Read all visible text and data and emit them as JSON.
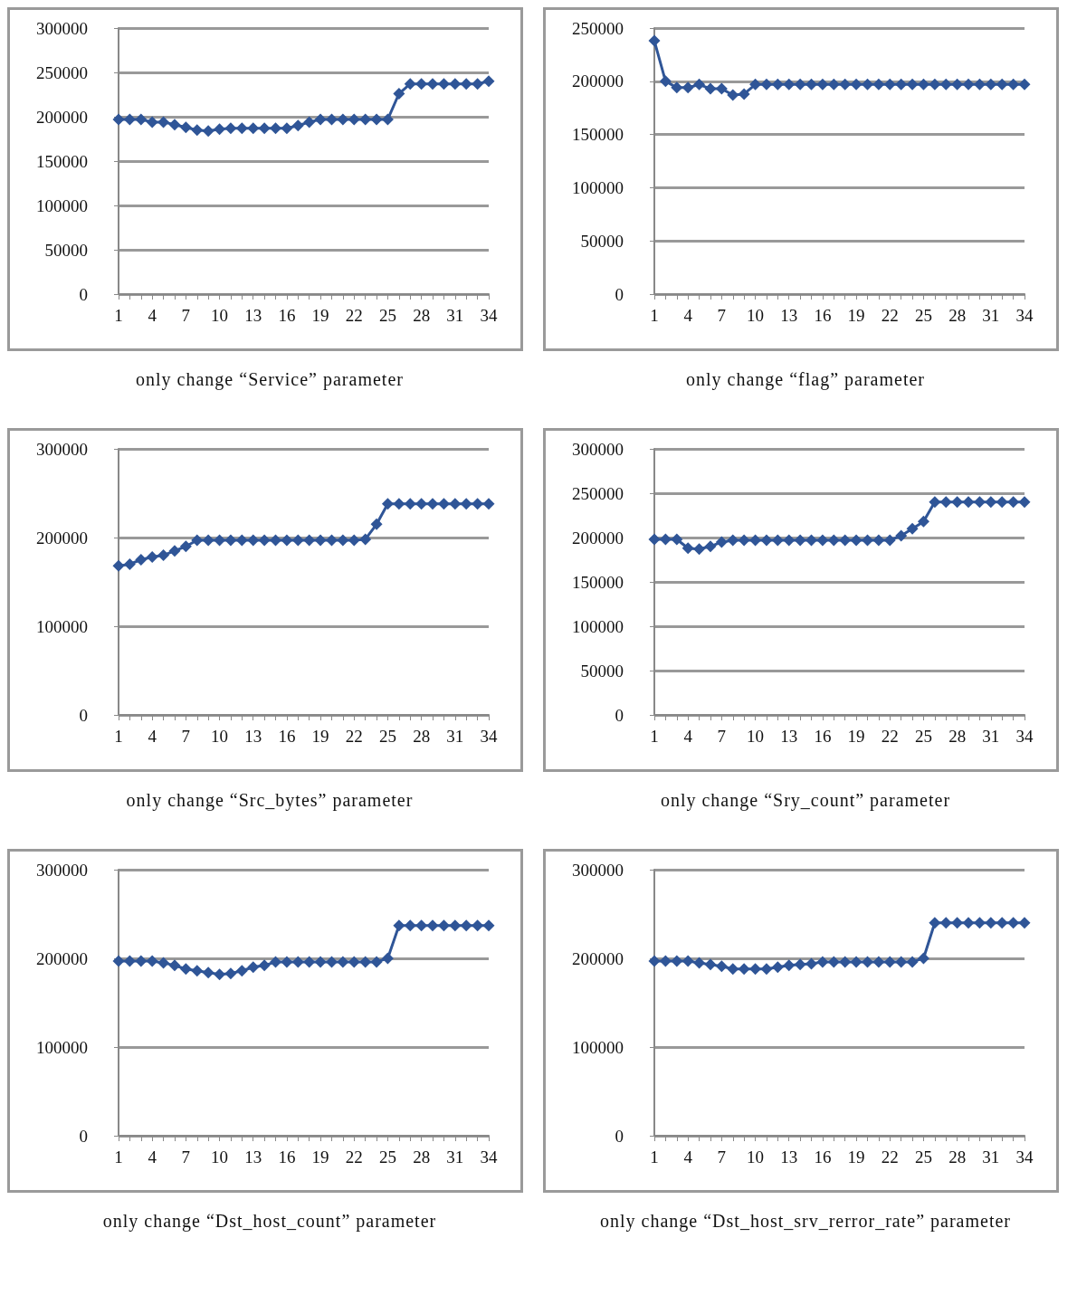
{
  "chart_data": [
    {
      "type": "line",
      "title": "only change “Service” parameter",
      "categories": [
        "1",
        null,
        null,
        "4",
        null,
        null,
        "7",
        null,
        null,
        "10",
        null,
        null,
        "13",
        null,
        null,
        "16",
        null,
        null,
        "19",
        null,
        null,
        "22",
        null,
        null,
        "25",
        null,
        null,
        "28",
        null,
        null,
        "31",
        null,
        null,
        "34"
      ],
      "series": [
        {
          "color": "#2f5597",
          "values": [
            197000,
            197000,
            197000,
            194000,
            194000,
            191000,
            188000,
            185000,
            184000,
            186000,
            187000,
            187000,
            187000,
            187000,
            187000,
            187000,
            190000,
            194000,
            197000,
            197000,
            197000,
            197000,
            197000,
            197000,
            197000,
            226000,
            237000,
            237000,
            237000,
            237000,
            237000,
            237000,
            237000,
            240000
          ]
        }
      ],
      "ylim": [
        0,
        300000
      ],
      "yticks": [
        0,
        50000,
        100000,
        150000,
        200000,
        250000,
        300000
      ],
      "grid": "y",
      "marker": "diamond",
      "line_style": "solid"
    },
    {
      "type": "line",
      "title": "only change “flag” parameter",
      "categories": [
        "1",
        null,
        null,
        "4",
        null,
        null,
        "7",
        null,
        null,
        "10",
        null,
        null,
        "13",
        null,
        null,
        "16",
        null,
        null,
        "19",
        null,
        null,
        "22",
        null,
        null,
        "25",
        null,
        null,
        "28",
        null,
        null,
        "31",
        null,
        null,
        "34"
      ],
      "series": [
        {
          "color": "#2f5597",
          "values": [
            238000,
            200000,
            194000,
            194000,
            197000,
            193000,
            193000,
            187000,
            188000,
            197000,
            197000,
            197000,
            197000,
            197000,
            197000,
            197000,
            197000,
            197000,
            197000,
            197000,
            197000,
            197000,
            197000,
            197000,
            197000,
            197000,
            197000,
            197000,
            197000,
            197000,
            197000,
            197000,
            197000,
            197000
          ]
        }
      ],
      "ylim": [
        0,
        250000
      ],
      "yticks": [
        0,
        50000,
        100000,
        150000,
        200000,
        250000
      ],
      "grid": "y",
      "marker": "diamond",
      "line_style": "solid"
    },
    {
      "type": "line",
      "title": "only change “Src_bytes” parameter",
      "categories": [
        "1",
        null,
        null,
        "4",
        null,
        null,
        "7",
        null,
        null,
        "10",
        null,
        null,
        "13",
        null,
        null,
        "16",
        null,
        null,
        "19",
        null,
        null,
        "22",
        null,
        null,
        "25",
        null,
        null,
        "28",
        null,
        null,
        "31",
        null,
        null,
        "34"
      ],
      "series": [
        {
          "color": "#2f5597",
          "values": [
            168000,
            170000,
            175000,
            178000,
            180000,
            185000,
            190000,
            197000,
            197000,
            197000,
            197000,
            197000,
            197000,
            197000,
            197000,
            197000,
            197000,
            197000,
            197000,
            197000,
            197000,
            197000,
            198000,
            215000,
            238000,
            238000,
            238000,
            238000,
            238000,
            238000,
            238000,
            238000,
            238000,
            238000
          ]
        }
      ],
      "ylim": [
        0,
        300000
      ],
      "yticks": [
        0,
        100000,
        200000,
        300000
      ],
      "grid": "y",
      "marker": "diamond",
      "line_style": "solid"
    },
    {
      "type": "line",
      "title": "only change “Sry_count” parameter",
      "categories": [
        "1",
        null,
        null,
        "4",
        null,
        null,
        "7",
        null,
        null,
        "10",
        null,
        null,
        "13",
        null,
        null,
        "16",
        null,
        null,
        "19",
        null,
        null,
        "22",
        null,
        null,
        "25",
        null,
        null,
        "28",
        null,
        null,
        "31",
        null,
        null,
        "34"
      ],
      "series": [
        {
          "color": "#2f5597",
          "values": [
            198000,
            198000,
            198000,
            188000,
            187000,
            190000,
            195000,
            197000,
            197000,
            197000,
            197000,
            197000,
            197000,
            197000,
            197000,
            197000,
            197000,
            197000,
            197000,
            197000,
            197000,
            197000,
            202000,
            210000,
            218000,
            240000,
            240000,
            240000,
            240000,
            240000,
            240000,
            240000,
            240000,
            240000
          ]
        }
      ],
      "ylim": [
        0,
        300000
      ],
      "yticks": [
        0,
        50000,
        100000,
        150000,
        200000,
        250000,
        300000
      ],
      "grid": "y",
      "marker": "diamond",
      "line_style": "solid"
    },
    {
      "type": "line",
      "title": "only change “Dst_host_count” parameter",
      "categories": [
        "1",
        null,
        null,
        "4",
        null,
        null,
        "7",
        null,
        null,
        "10",
        null,
        null,
        "13",
        null,
        null,
        "16",
        null,
        null,
        "19",
        null,
        null,
        "22",
        null,
        null,
        "25",
        null,
        null,
        "28",
        null,
        null,
        "31",
        null,
        null,
        "34"
      ],
      "series": [
        {
          "color": "#2f5597",
          "values": [
            197000,
            197000,
            197000,
            197000,
            195000,
            192000,
            188000,
            186000,
            184000,
            182000,
            183000,
            186000,
            190000,
            192000,
            196000,
            196000,
            196000,
            196000,
            196000,
            196000,
            196000,
            196000,
            196000,
            196000,
            200000,
            237000,
            237000,
            237000,
            237000,
            237000,
            237000,
            237000,
            237000,
            237000
          ]
        }
      ],
      "ylim": [
        0,
        300000
      ],
      "yticks": [
        0,
        100000,
        200000,
        300000
      ],
      "grid": "y",
      "marker": "diamond",
      "line_style": "solid"
    },
    {
      "type": "line",
      "title": "only change “Dst_host_srv_rerror_rate” parameter",
      "categories": [
        "1",
        null,
        null,
        "4",
        null,
        null,
        "7",
        null,
        null,
        "10",
        null,
        null,
        "13",
        null,
        null,
        "16",
        null,
        null,
        "19",
        null,
        null,
        "22",
        null,
        null,
        "25",
        null,
        null,
        "28",
        null,
        null,
        "31",
        null,
        null,
        "34"
      ],
      "series": [
        {
          "color": "#2f5597",
          "values": [
            197000,
            197000,
            197000,
            197000,
            195000,
            193000,
            191000,
            188000,
            188000,
            188000,
            188000,
            190000,
            192000,
            193000,
            194000,
            196000,
            196000,
            196000,
            196000,
            196000,
            196000,
            196000,
            196000,
            196000,
            200000,
            240000,
            240000,
            240000,
            240000,
            240000,
            240000,
            240000,
            240000,
            240000
          ]
        }
      ],
      "ylim": [
        0,
        300000
      ],
      "yticks": [
        0,
        100000,
        200000,
        300000
      ],
      "grid": "y",
      "marker": "diamond",
      "line_style": "solid"
    }
  ]
}
